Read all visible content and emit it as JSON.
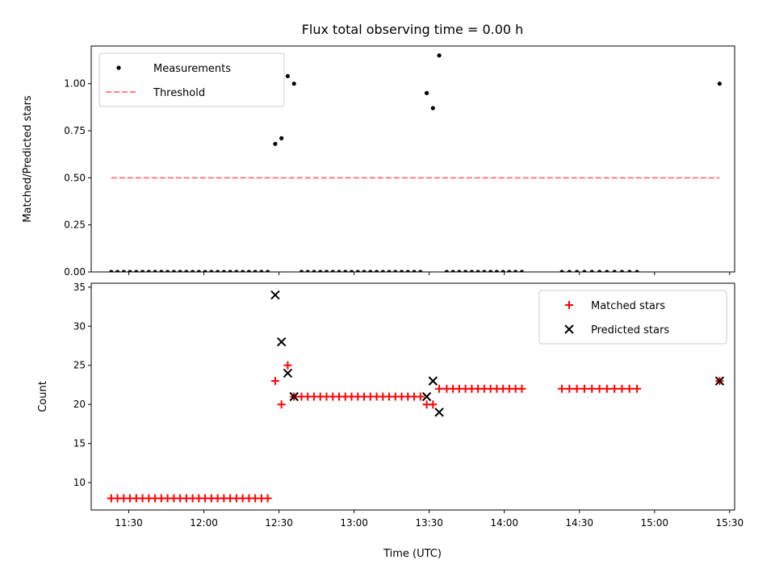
{
  "chart_data": {
    "title": "Flux total observing time = 0.00 h",
    "xlabel": "Time (UTC)",
    "x_tick_labels": [
      "11:30",
      "12:00",
      "12:30",
      "13:00",
      "13:30",
      "14:00",
      "14:30",
      "15:00",
      "15:30"
    ],
    "x_tick_minutes": [
      690,
      720,
      750,
      780,
      810,
      840,
      870,
      900,
      930
    ],
    "xlim_minutes": [
      675,
      932
    ],
    "panels": [
      {
        "type": "scatter",
        "ylabel": "Matched/Predicted stars",
        "ylim": [
          0,
          1.2
        ],
        "y_ticks": [
          0,
          0.25,
          0.5,
          0.75,
          1.0
        ],
        "y_tick_labels": [
          "0.00",
          "0.25",
          "0.50",
          "0.75",
          "1.00"
        ],
        "legend": {
          "placement": "upper-left",
          "entries": [
            "Measurements",
            "Threshold"
          ]
        },
        "series": [
          {
            "name": "Measurements",
            "marker": "dot",
            "color": "#000000",
            "points": [
              [
                683,
                0
              ],
              [
                685.5,
                0
              ],
              [
                688,
                0
              ],
              [
                690.5,
                0
              ],
              [
                693,
                0
              ],
              [
                695.5,
                0
              ],
              [
                698,
                0
              ],
              [
                700.5,
                0
              ],
              [
                703,
                0
              ],
              [
                705.5,
                0
              ],
              [
                708,
                0
              ],
              [
                710.5,
                0
              ],
              [
                713,
                0
              ],
              [
                715.5,
                0
              ],
              [
                718,
                0
              ],
              [
                720.5,
                0
              ],
              [
                723,
                0
              ],
              [
                725.5,
                0
              ],
              [
                728,
                0
              ],
              [
                730.5,
                0
              ],
              [
                733,
                0
              ],
              [
                735.5,
                0
              ],
              [
                738,
                0
              ],
              [
                740.5,
                0
              ],
              [
                743,
                0
              ],
              [
                745.5,
                0
              ],
              [
                748.5,
                0.68
              ],
              [
                751,
                0.71
              ],
              [
                753.5,
                1.04
              ],
              [
                756,
                1.0
              ],
              [
                759,
                0
              ],
              [
                761.5,
                0
              ],
              [
                764,
                0
              ],
              [
                766.5,
                0
              ],
              [
                769,
                0
              ],
              [
                771.5,
                0
              ],
              [
                774,
                0
              ],
              [
                776.5,
                0
              ],
              [
                779,
                0
              ],
              [
                781.5,
                0
              ],
              [
                784,
                0
              ],
              [
                786.5,
                0
              ],
              [
                789,
                0
              ],
              [
                791.5,
                0
              ],
              [
                794,
                0
              ],
              [
                796.5,
                0
              ],
              [
                799,
                0
              ],
              [
                801.5,
                0
              ],
              [
                804,
                0
              ],
              [
                806.5,
                0
              ],
              [
                809,
                0.95
              ],
              [
                811.5,
                0.87
              ],
              [
                814,
                1.15
              ],
              [
                817,
                0
              ],
              [
                819.5,
                0
              ],
              [
                822,
                0
              ],
              [
                824.5,
                0
              ],
              [
                827,
                0
              ],
              [
                829.5,
                0
              ],
              [
                832,
                0
              ],
              [
                834.5,
                0
              ],
              [
                837,
                0
              ],
              [
                839.5,
                0
              ],
              [
                842,
                0
              ],
              [
                844.5,
                0
              ],
              [
                847,
                0
              ],
              [
                863,
                0
              ],
              [
                866,
                0
              ],
              [
                869,
                0
              ],
              [
                872,
                0
              ],
              [
                875,
                0
              ],
              [
                878,
                0
              ],
              [
                881,
                0
              ],
              [
                884,
                0
              ],
              [
                887,
                0
              ],
              [
                890,
                0
              ],
              [
                893,
                0
              ],
              [
                926,
                1.0
              ]
            ]
          },
          {
            "name": "Threshold",
            "style": "dashed",
            "color": "#ff8080",
            "points": [
              [
                683,
                0.5
              ],
              [
                926,
                0.5
              ]
            ]
          }
        ]
      },
      {
        "type": "scatter",
        "ylabel": "Count",
        "ylim": [
          6.5,
          35.5
        ],
        "y_ticks": [
          10,
          15,
          20,
          25,
          30,
          35
        ],
        "y_tick_labels": [
          "10",
          "15",
          "20",
          "25",
          "30",
          "35"
        ],
        "legend": {
          "placement": "upper-right",
          "entries": [
            "Matched stars",
            "Predicted stars"
          ]
        },
        "series": [
          {
            "name": "Matched stars",
            "marker": "plus",
            "color": "#ff0000",
            "points": [
              [
                683,
                8
              ],
              [
                685.5,
                8
              ],
              [
                688,
                8
              ],
              [
                690.5,
                8
              ],
              [
                693,
                8
              ],
              [
                695.5,
                8
              ],
              [
                698,
                8
              ],
              [
                700.5,
                8
              ],
              [
                703,
                8
              ],
              [
                705.5,
                8
              ],
              [
                708,
                8
              ],
              [
                710.5,
                8
              ],
              [
                713,
                8
              ],
              [
                715.5,
                8
              ],
              [
                718,
                8
              ],
              [
                720.5,
                8
              ],
              [
                723,
                8
              ],
              [
                725.5,
                8
              ],
              [
                728,
                8
              ],
              [
                730.5,
                8
              ],
              [
                733,
                8
              ],
              [
                735.5,
                8
              ],
              [
                738,
                8
              ],
              [
                740.5,
                8
              ],
              [
                743,
                8
              ],
              [
                745.5,
                8
              ],
              [
                748.5,
                23
              ],
              [
                751,
                20
              ],
              [
                753.5,
                25
              ],
              [
                756,
                21
              ],
              [
                759,
                21
              ],
              [
                761.5,
                21
              ],
              [
                764,
                21
              ],
              [
                766.5,
                21
              ],
              [
                769,
                21
              ],
              [
                771.5,
                21
              ],
              [
                774,
                21
              ],
              [
                776.5,
                21
              ],
              [
                779,
                21
              ],
              [
                781.5,
                21
              ],
              [
                784,
                21
              ],
              [
                786.5,
                21
              ],
              [
                789,
                21
              ],
              [
                791.5,
                21
              ],
              [
                794,
                21
              ],
              [
                796.5,
                21
              ],
              [
                799,
                21
              ],
              [
                801.5,
                21
              ],
              [
                804,
                21
              ],
              [
                806.5,
                21
              ],
              [
                809,
                20
              ],
              [
                811.5,
                20
              ],
              [
                814,
                22
              ],
              [
                817,
                22
              ],
              [
                819.5,
                22
              ],
              [
                822,
                22
              ],
              [
                824.5,
                22
              ],
              [
                827,
                22
              ],
              [
                829.5,
                22
              ],
              [
                832,
                22
              ],
              [
                834.5,
                22
              ],
              [
                837,
                22
              ],
              [
                839.5,
                22
              ],
              [
                842,
                22
              ],
              [
                844.5,
                22
              ],
              [
                847,
                22
              ],
              [
                863,
                22
              ],
              [
                866,
                22
              ],
              [
                869,
                22
              ],
              [
                872,
                22
              ],
              [
                875,
                22
              ],
              [
                878,
                22
              ],
              [
                881,
                22
              ],
              [
                884,
                22
              ],
              [
                887,
                22
              ],
              [
                890,
                22
              ],
              [
                893,
                22
              ],
              [
                926,
                23
              ]
            ]
          },
          {
            "name": "Predicted stars",
            "marker": "x",
            "color": "#000000",
            "points": [
              [
                748.5,
                34
              ],
              [
                751,
                28
              ],
              [
                753.5,
                24
              ],
              [
                756,
                21
              ],
              [
                809,
                21
              ],
              [
                811.5,
                23
              ],
              [
                814,
                19
              ],
              [
                926,
                23
              ]
            ]
          }
        ]
      }
    ]
  }
}
